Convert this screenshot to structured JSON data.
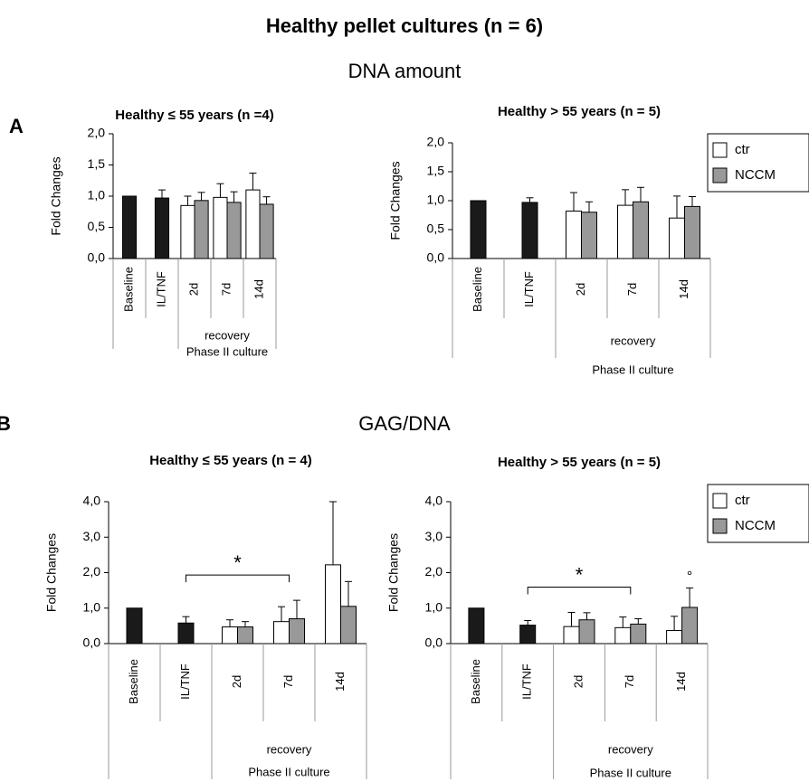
{
  "title": "Healthy pellet cultures (n = 6)",
  "sections": [
    {
      "letter": "A",
      "heading": "DNA amount"
    },
    {
      "letter": "B",
      "heading": "GAG/DNA"
    }
  ],
  "chart_data": [
    {
      "type": "bar",
      "title": "Healthy ≤ 55 years (n =4)",
      "y_label": "Fold Changes",
      "categories": [
        "Baseline",
        "IL/TNF",
        "2d",
        "7d",
        "14d"
      ],
      "group": {
        "label": "recovery",
        "from": "2d",
        "to": "14d"
      },
      "x_label": "Phase II culture",
      "values": [
        1.0,
        0.97,
        null,
        null,
        null
      ],
      "errors": [
        null,
        0.13,
        null,
        null,
        null
      ],
      "color": "#1a1a1a",
      "series": [
        {
          "name": "ctr",
          "color": "#ffffff",
          "values": [
            null,
            null,
            0.85,
            0.98,
            1.1
          ],
          "errors": [
            null,
            null,
            0.15,
            0.22,
            0.27
          ]
        },
        {
          "name": "NCCM",
          "color": "#999999",
          "values": [
            null,
            null,
            0.93,
            0.9,
            0.87
          ],
          "errors": [
            null,
            null,
            0.13,
            0.17,
            0.12
          ]
        }
      ],
      "ylim": [
        0,
        2
      ],
      "yticks": [
        {
          "value": 0,
          "label": "0,0"
        },
        {
          "value": 0.5,
          "label": "0,5"
        },
        {
          "value": 1,
          "label": "1,0"
        },
        {
          "value": 1.5,
          "label": "1,5"
        },
        {
          "value": 2,
          "label": "2,0"
        }
      ]
    },
    {
      "type": "bar",
      "title": "Healthy > 55 years (n = 5)",
      "y_label": "Fold Changes",
      "categories": [
        "Baseline",
        "IL/TNF",
        "2d",
        "7d",
        "14d"
      ],
      "group": {
        "label": "recovery",
        "from": "2d",
        "to": "14d"
      },
      "x_label": "Phase II culture",
      "values": [
        1.0,
        0.97,
        null,
        null,
        null
      ],
      "errors": [
        null,
        0.08,
        null,
        null,
        null
      ],
      "color": "#1a1a1a",
      "series": [
        {
          "name": "ctr",
          "color": "#ffffff",
          "values": [
            null,
            null,
            0.82,
            0.92,
            0.7
          ],
          "errors": [
            null,
            null,
            0.32,
            0.27,
            0.38
          ]
        },
        {
          "name": "NCCM",
          "color": "#999999",
          "values": [
            null,
            null,
            0.8,
            0.98,
            0.9
          ],
          "errors": [
            null,
            null,
            0.18,
            0.25,
            0.17
          ]
        }
      ],
      "ylim": [
        0,
        2
      ],
      "yticks": [
        {
          "value": 0,
          "label": "0,0"
        },
        {
          "value": 0.5,
          "label": "0,5"
        },
        {
          "value": 1,
          "label": "1,0"
        },
        {
          "value": 1.5,
          "label": "1,5"
        },
        {
          "value": 2,
          "label": "2,0"
        }
      ],
      "legend": "outside right"
    },
    {
      "type": "bar",
      "title": "Healthy ≤ 55 years (n = 4)",
      "y_label": "Fold Changes",
      "categories": [
        "Baseline",
        "IL/TNF",
        "2d",
        "7d",
        "14d"
      ],
      "group": {
        "label": "recovery",
        "from": "2d",
        "to": "14d"
      },
      "x_label": "Phase II culture",
      "values": [
        1.0,
        0.58,
        null,
        null,
        null
      ],
      "errors": [
        null,
        0.18,
        null,
        null,
        null
      ],
      "color": "#1a1a1a",
      "series": [
        {
          "name": "ctr",
          "color": "#ffffff",
          "values": [
            null,
            null,
            0.47,
            0.62,
            2.22
          ],
          "errors": [
            null,
            null,
            0.2,
            0.42,
            1.78
          ]
        },
        {
          "name": "NCCM",
          "color": "#999999",
          "values": [
            null,
            null,
            0.47,
            0.7,
            1.05
          ],
          "errors": [
            null,
            null,
            0.15,
            0.52,
            0.7
          ]
        }
      ],
      "ylim": [
        0,
        4
      ],
      "yticks": [
        {
          "value": 0,
          "label": "0,0"
        },
        {
          "value": 1,
          "label": "1,0"
        },
        {
          "value": 2,
          "label": "2,0"
        },
        {
          "value": 3,
          "label": "3,0"
        },
        {
          "value": 4,
          "label": "4,0"
        }
      ],
      "brackets": [
        {
          "text": "*",
          "from": "IL/TNF",
          "to": "7d"
        }
      ]
    },
    {
      "type": "bar",
      "title": "Healthy > 55 years (n = 5)",
      "y_label": "Fold Changes",
      "categories": [
        "Baseline",
        "IL/TNF",
        "2d",
        "7d",
        "14d"
      ],
      "group": {
        "label": "recovery",
        "from": "2d",
        "to": "14d"
      },
      "x_label": "Phase II culture",
      "values": [
        1.0,
        0.52,
        null,
        null,
        null
      ],
      "errors": [
        null,
        0.13,
        null,
        null,
        null
      ],
      "color": "#1a1a1a",
      "series": [
        {
          "name": "ctr",
          "color": "#ffffff",
          "values": [
            null,
            null,
            0.48,
            0.45,
            0.37
          ],
          "errors": [
            null,
            null,
            0.4,
            0.3,
            0.4
          ]
        },
        {
          "name": "NCCM",
          "color": "#999999",
          "values": [
            null,
            null,
            0.67,
            0.55,
            1.02
          ],
          "errors": [
            null,
            null,
            0.2,
            0.15,
            0.55
          ]
        }
      ],
      "ylim": [
        0,
        4
      ],
      "yticks": [
        {
          "value": 0,
          "label": "0,0"
        },
        {
          "value": 1,
          "label": "1,0"
        },
        {
          "value": 2,
          "label": "2,0"
        },
        {
          "value": 3,
          "label": "3,0"
        },
        {
          "value": 4,
          "label": "4,0"
        }
      ],
      "brackets": [
        {
          "text": "*",
          "from": "IL/TNF",
          "to": "7d"
        }
      ],
      "point_notes": [
        {
          "text": "°",
          "series": "NCCM",
          "category": "14d"
        }
      ],
      "legend": "outside right"
    }
  ]
}
